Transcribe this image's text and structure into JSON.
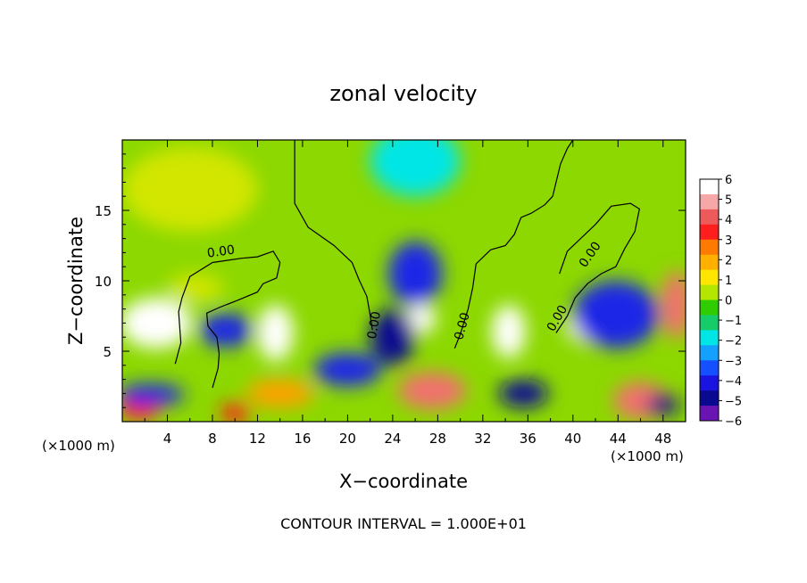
{
  "chart_data": {
    "type": "heatmap",
    "title": "zonal velocity",
    "xlabel": "X−coordinate",
    "ylabel": "Z−coordinate",
    "x_unit_label": "(×1000 m)",
    "x_unit_label_right": "(×1000 m)",
    "xlim": [
      0,
      50
    ],
    "ylim": [
      0,
      20
    ],
    "x_ticks": [
      "4",
      "8",
      "12",
      "16",
      "20",
      "24",
      "28",
      "32",
      "36",
      "40",
      "44",
      "48"
    ],
    "y_ticks": [
      "5",
      "10",
      "15"
    ],
    "footer": "CONTOUR INTERVAL = 1.000E+01",
    "contour_label": "0.00",
    "colorbar": {
      "labels": [
        "6",
        "5",
        "4",
        "3",
        "2",
        "1",
        "0",
        "−1",
        "−2",
        "−3",
        "−4",
        "−5",
        "−6"
      ],
      "colors": [
        "#ffffff",
        "#f6a8a8",
        "#ee5a5a",
        "#ff1e1e",
        "#ff7a00",
        "#ffb000",
        "#ffe600",
        "#b4e600",
        "#2ecc00",
        "#16cc68",
        "#00e6e6",
        "#14a0ff",
        "#1450ff",
        "#1a14e0",
        "#0a0a90",
        "#6a14b4"
      ]
    },
    "field_blobs": [
      {
        "x": 3,
        "z": 7,
        "rx": 3.2,
        "rz": 1.8,
        "v": 7
      },
      {
        "x": 13.6,
        "z": 6.3,
        "rx": 1.6,
        "rz": 2.0,
        "v": 7
      },
      {
        "x": 26.5,
        "z": 7.3,
        "rx": 1.3,
        "rz": 1.1,
        "v": 7
      },
      {
        "x": 34.3,
        "z": 6.4,
        "rx": 1.5,
        "rz": 1.9,
        "v": 7
      },
      {
        "x": 42.5,
        "z": 6.8,
        "rx": 3.2,
        "rz": 1.4,
        "v": 7
      },
      {
        "x": 49.2,
        "z": 8.3,
        "rx": 1.3,
        "rz": 2.4,
        "v": 6
      },
      {
        "x": 27.5,
        "z": 2.2,
        "rx": 3.0,
        "rz": 1.3,
        "v": 6
      },
      {
        "x": 10.0,
        "z": 0.6,
        "rx": 1.3,
        "rz": 0.7,
        "v": 5
      },
      {
        "x": 46.0,
        "z": 1.5,
        "rx": 2.4,
        "rz": 1.3,
        "v": 6
      },
      {
        "x": 1.5,
        "z": 1.0,
        "rx": 1.8,
        "rz": 0.9,
        "v": 5
      },
      {
        "x": 9.2,
        "z": 6.5,
        "rx": 2.4,
        "rz": 1.2,
        "v": -4
      },
      {
        "x": 26.0,
        "z": 10.5,
        "rx": 2.4,
        "rz": 2.3,
        "v": -4
      },
      {
        "x": 24.0,
        "z": 6.0,
        "rx": 2.0,
        "rz": 2.0,
        "v": -5
      },
      {
        "x": 20.0,
        "z": 3.7,
        "rx": 3.0,
        "rz": 1.2,
        "v": -4
      },
      {
        "x": 35.6,
        "z": 2.0,
        "rx": 2.2,
        "rz": 1.0,
        "v": -5
      },
      {
        "x": 2.5,
        "z": 1.9,
        "rx": 3.0,
        "rz": 0.8,
        "v": -4
      },
      {
        "x": 43.8,
        "z": 7.6,
        "rx": 3.8,
        "rz": 2.4,
        "v": -4
      },
      {
        "x": 48.0,
        "z": 1.2,
        "rx": 1.4,
        "rz": 0.8,
        "v": -5
      },
      {
        "x": 26.0,
        "z": 18.5,
        "rx": 4.0,
        "rz": 2.5,
        "v": -2
      },
      {
        "x": 6.0,
        "z": 16.5,
        "rx": 6.0,
        "rz": 3.0,
        "v": 1.5
      },
      {
        "x": 6.5,
        "z": 9.5,
        "rx": 2.5,
        "rz": 1.0,
        "v": 1.8
      },
      {
        "x": 14.0,
        "z": 2.0,
        "rx": 3.0,
        "rz": 1.0,
        "v": 3
      }
    ],
    "zero_contours": [
      [
        [
          4.7,
          4.1
        ],
        [
          5.2,
          5.6
        ],
        [
          5.0,
          7.8
        ],
        [
          5.3,
          8.8
        ],
        [
          6.0,
          10.3
        ],
        [
          8.0,
          11.3
        ],
        [
          10.6,
          11.6
        ],
        [
          12.0,
          11.7
        ],
        [
          13.4,
          12.1
        ],
        [
          14.0,
          11.3
        ],
        [
          13.7,
          10.2
        ],
        [
          12.5,
          9.8
        ],
        [
          12.0,
          9.2
        ],
        [
          10.2,
          8.6
        ],
        [
          8.6,
          8.1
        ],
        [
          7.5,
          7.7
        ],
        [
          7.6,
          6.8
        ],
        [
          8.4,
          6.0
        ],
        [
          8.6,
          4.8
        ],
        [
          8.5,
          3.8
        ],
        [
          8.0,
          2.4
        ]
      ],
      [
        [
          15.3,
          20
        ],
        [
          15.3,
          15.5
        ],
        [
          16.5,
          13.8
        ],
        [
          18.8,
          12.5
        ],
        [
          20.4,
          11.3
        ],
        [
          21.0,
          10.1
        ],
        [
          21.7,
          8.9
        ],
        [
          22.0,
          7.6
        ],
        [
          22.2,
          6.5
        ]
      ],
      [
        [
          29.5,
          5.2
        ],
        [
          30.0,
          6.2
        ],
        [
          30.7,
          8.0
        ],
        [
          31.1,
          9.5
        ],
        [
          31.4,
          11.2
        ],
        [
          32.7,
          12.2
        ],
        [
          34.0,
          12.5
        ],
        [
          34.8,
          13.3
        ],
        [
          35.4,
          14.5
        ],
        [
          36.3,
          14.8
        ],
        [
          37.5,
          15.4
        ],
        [
          38.2,
          16.0
        ],
        [
          38.9,
          18.3
        ],
        [
          39.5,
          19.4
        ],
        [
          40.0,
          20
        ]
      ],
      [
        [
          38.5,
          6.3
        ],
        [
          39.5,
          7.5
        ],
        [
          40.2,
          8.8
        ],
        [
          41.3,
          9.8
        ],
        [
          42.5,
          10.5
        ],
        [
          43.8,
          11.0
        ],
        [
          44.6,
          12.3
        ],
        [
          45.5,
          13.5
        ],
        [
          45.9,
          15.1
        ],
        [
          45.1,
          15.5
        ],
        [
          43.4,
          15.3
        ],
        [
          42.0,
          14.0
        ],
        [
          39.5,
          12.1
        ],
        [
          38.8,
          10.5
        ]
      ]
    ],
    "grid": false,
    "legend": "colorbar-right"
  }
}
